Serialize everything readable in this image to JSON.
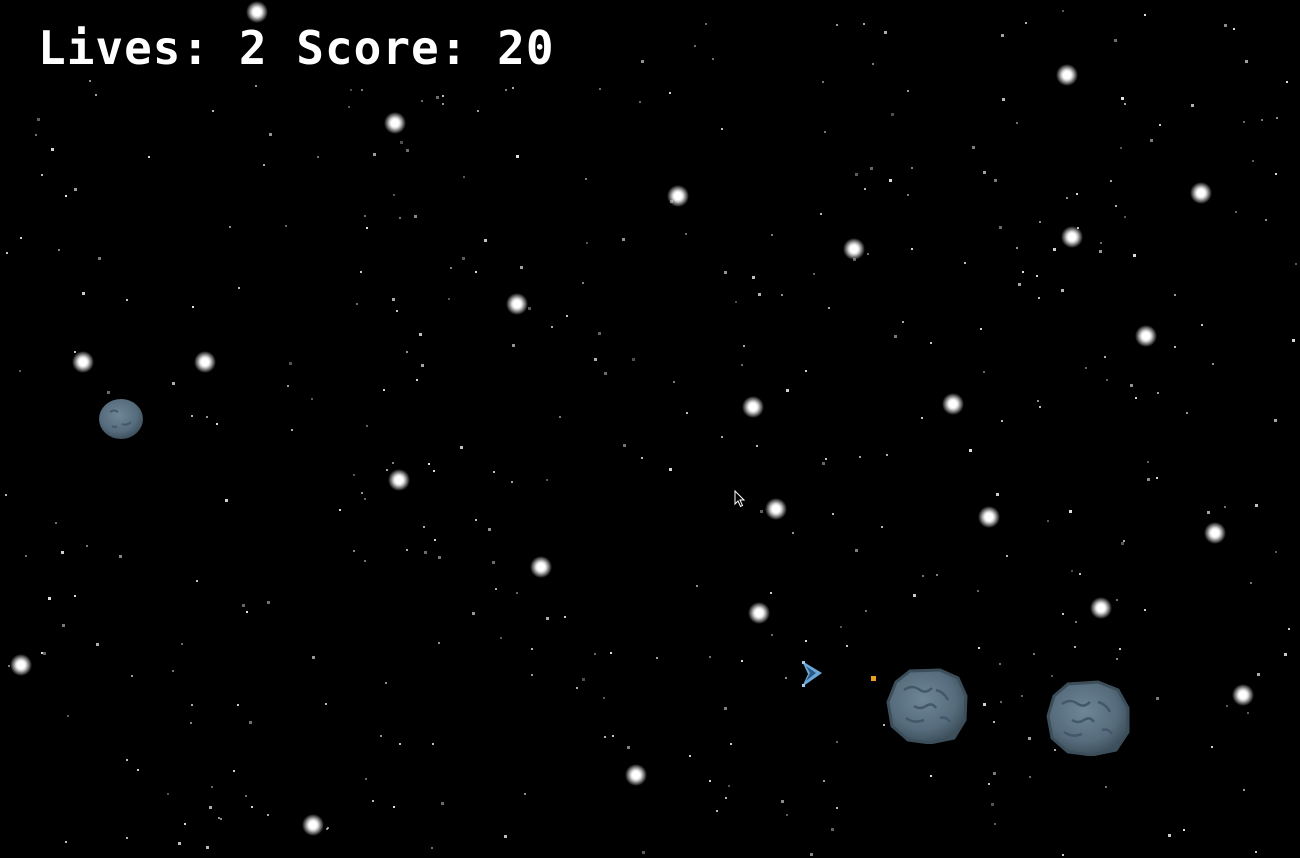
{
  "hud": {
    "lives_label": "Lives:",
    "lives": 2,
    "score_label": "Score:",
    "score": 20
  },
  "colors": {
    "background": "#000000",
    "text": "#ffffff",
    "star": "#ffffff",
    "asteroid": "#5c7282",
    "ship": "#6aa6d6",
    "bullet": "#e8a020"
  },
  "entities": {
    "ship_icon": "ship-icon",
    "bullet_icon": "bullet-icon",
    "asteroid_icon": "asteroid-icon",
    "cursor_icon": "mouse-pointer-icon"
  }
}
